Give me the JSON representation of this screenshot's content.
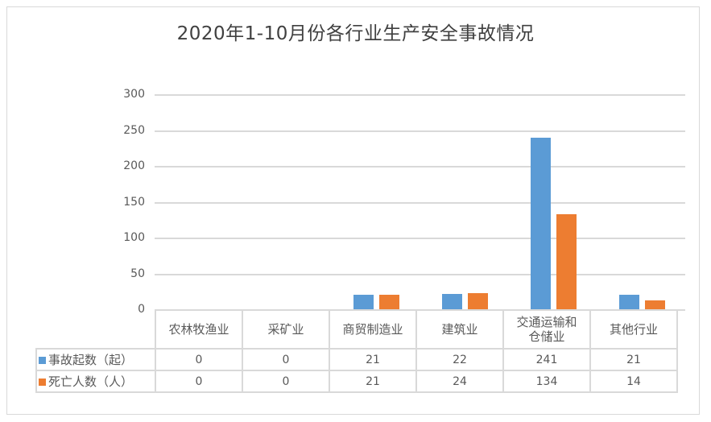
{
  "chart_data": {
    "type": "bar",
    "title": "2020年1-10月份各行业生产安全事故情况",
    "categories": [
      "农林牧渔业",
      "采矿业",
      "商贸制造业",
      "建筑业",
      "交通运输和仓储业",
      "其他行业"
    ],
    "series": [
      {
        "name": "事故起数（起）",
        "color": "#5b9bd5",
        "values": [
          0,
          0,
          21,
          22,
          241,
          21
        ]
      },
      {
        "name": "死亡人数（人）",
        "color": "#ed7d31",
        "values": [
          0,
          0,
          21,
          24,
          134,
          14
        ]
      }
    ],
    "xlabel": "",
    "ylabel": "",
    "ylim": [
      0,
      300
    ],
    "yticks": [
      "300",
      "250",
      "200",
      "150",
      "100",
      "50",
      "0"
    ],
    "grid": true,
    "legend_position": "data-table",
    "data_table": true
  },
  "table": {
    "categories": [
      "农林牧渔业",
      "采矿业",
      "商贸制造业",
      "建筑业",
      "交通运输和仓储业",
      "其他行业"
    ],
    "cat_lines": [
      [
        "农林牧渔业"
      ],
      [
        "采矿业"
      ],
      [
        "商贸制造业"
      ],
      [
        "建筑业"
      ],
      [
        "交通运输和",
        "仓储业"
      ],
      [
        "其他行业"
      ]
    ],
    "rows": [
      {
        "label": "事故起数（起）",
        "values": [
          "0",
          "0",
          "21",
          "22",
          "241",
          "21"
        ]
      },
      {
        "label": "死亡人数（人）",
        "values": [
          "0",
          "0",
          "21",
          "24",
          "134",
          "14"
        ]
      }
    ]
  }
}
